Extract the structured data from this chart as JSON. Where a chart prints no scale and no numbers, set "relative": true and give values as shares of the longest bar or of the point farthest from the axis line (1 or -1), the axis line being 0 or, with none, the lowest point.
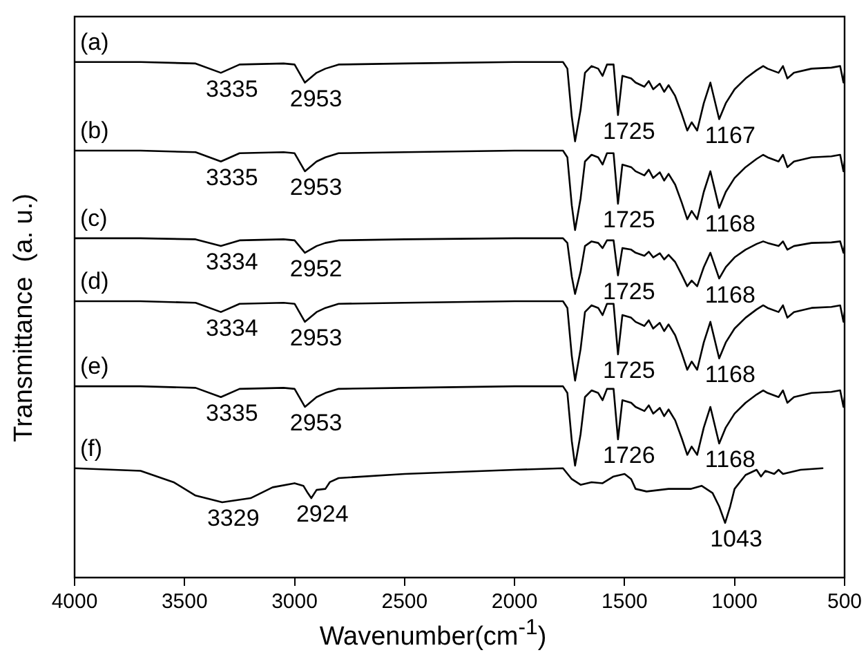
{
  "chart_data": {
    "type": "line",
    "relative": true,
    "xlabel": "Wavenumber(cm$^{-1}$)",
    "ylabel": "Transmittance  (a. u.)",
    "xlim": [
      4000,
      500
    ],
    "xticks": [
      4000,
      3500,
      3000,
      2500,
      2000,
      1500,
      1000,
      500
    ],
    "x": [
      4000,
      3700,
      3450,
      3335,
      3250,
      3050,
      3000,
      2953,
      2900,
      2860,
      2800,
      2500,
      2000,
      1780,
      1760,
      1740,
      1725,
      1700,
      1680,
      1650,
      1620,
      1600,
      1580,
      1550,
      1530,
      1510,
      1470,
      1450,
      1410,
      1390,
      1370,
      1340,
      1320,
      1300,
      1270,
      1240,
      1215,
      1195,
      1170,
      1140,
      1110,
      1070,
      1040,
      1000,
      950,
      900,
      870,
      850,
      800,
      780,
      760,
      730,
      650,
      560,
      520,
      505,
      500
    ],
    "series": [
      {
        "name": "(a)",
        "color": "#000000",
        "values": [
          1,
          1,
          0.997,
          0.979,
          0.995,
          0.997,
          0.995,
          0.96,
          0.979,
          0.987,
          0.995,
          0.997,
          1,
          1,
          0.987,
          0.894,
          0.846,
          0.907,
          0.979,
          0.992,
          0.987,
          0.973,
          0.995,
          0.995,
          0.897,
          0.973,
          0.968,
          0.96,
          0.952,
          0.963,
          0.947,
          0.958,
          0.942,
          0.955,
          0.934,
          0.899,
          0.867,
          0.883,
          0.867,
          0.92,
          0.96,
          0.889,
          0.92,
          0.947,
          0.968,
          0.984,
          0.992,
          0.987,
          0.979,
          0.992,
          0.968,
          0.979,
          0.987,
          0.989,
          0.992,
          0.96,
          0.979
        ]
      },
      {
        "name": "(b)",
        "color": "#000000",
        "values": [
          0.828,
          0.828,
          0.825,
          0.807,
          0.823,
          0.825,
          0.823,
          0.788,
          0.807,
          0.815,
          0.823,
          0.825,
          0.828,
          0.828,
          0.815,
          0.722,
          0.674,
          0.735,
          0.807,
          0.82,
          0.815,
          0.801,
          0.823,
          0.823,
          0.725,
          0.801,
          0.796,
          0.788,
          0.78,
          0.791,
          0.775,
          0.786,
          0.77,
          0.783,
          0.762,
          0.727,
          0.695,
          0.711,
          0.695,
          0.748,
          0.788,
          0.717,
          0.748,
          0.775,
          0.796,
          0.812,
          0.82,
          0.815,
          0.807,
          0.82,
          0.796,
          0.807,
          0.815,
          0.817,
          0.82,
          0.788,
          0.807
        ]
      },
      {
        "name": "(c)",
        "color": "#000000",
        "values": [
          0.658,
          0.658,
          0.656,
          0.643,
          0.654,
          0.656,
          0.654,
          0.63,
          0.643,
          0.649,
          0.654,
          0.656,
          0.658,
          0.658,
          0.649,
          0.584,
          0.55,
          0.593,
          0.643,
          0.652,
          0.649,
          0.639,
          0.654,
          0.654,
          0.586,
          0.639,
          0.636,
          0.63,
          0.624,
          0.632,
          0.621,
          0.629,
          0.617,
          0.626,
          0.612,
          0.587,
          0.565,
          0.576,
          0.565,
          0.602,
          0.63,
          0.58,
          0.602,
          0.621,
          0.636,
          0.647,
          0.652,
          0.649,
          0.643,
          0.652,
          0.636,
          0.643,
          0.649,
          0.65,
          0.652,
          0.63,
          0.643
        ]
      },
      {
        "name": "(d)",
        "color": "#000000",
        "values": [
          0.536,
          0.536,
          0.533,
          0.515,
          0.531,
          0.533,
          0.531,
          0.496,
          0.515,
          0.523,
          0.531,
          0.533,
          0.536,
          0.536,
          0.523,
          0.43,
          0.382,
          0.443,
          0.515,
          0.528,
          0.523,
          0.509,
          0.531,
          0.531,
          0.433,
          0.509,
          0.504,
          0.496,
          0.488,
          0.499,
          0.483,
          0.494,
          0.478,
          0.491,
          0.47,
          0.435,
          0.403,
          0.419,
          0.403,
          0.456,
          0.496,
          0.425,
          0.456,
          0.483,
          0.504,
          0.52,
          0.528,
          0.523,
          0.515,
          0.528,
          0.504,
          0.515,
          0.523,
          0.525,
          0.528,
          0.496,
          0.515
        ]
      },
      {
        "name": "(e)",
        "color": "#000000",
        "values": [
          0.371,
          0.371,
          0.368,
          0.35,
          0.366,
          0.368,
          0.366,
          0.331,
          0.35,
          0.358,
          0.366,
          0.368,
          0.371,
          0.371,
          0.358,
          0.265,
          0.217,
          0.278,
          0.35,
          0.363,
          0.358,
          0.344,
          0.366,
          0.366,
          0.268,
          0.344,
          0.339,
          0.331,
          0.323,
          0.334,
          0.318,
          0.329,
          0.313,
          0.326,
          0.305,
          0.27,
          0.238,
          0.254,
          0.238,
          0.291,
          0.331,
          0.26,
          0.291,
          0.318,
          0.339,
          0.355,
          0.363,
          0.358,
          0.35,
          0.363,
          0.339,
          0.35,
          0.358,
          0.36,
          0.363,
          0.331,
          0.35
        ]
      },
      {
        "name": "(f)",
        "color": "#000000",
        "x": [
          4000,
          3700,
          3550,
          3450,
          3329,
          3200,
          3100,
          3000,
          2960,
          2940,
          2924,
          2900,
          2860,
          2840,
          2800,
          2500,
          2000,
          1780,
          1740,
          1700,
          1650,
          1600,
          1550,
          1500,
          1470,
          1450,
          1400,
          1300,
          1200,
          1150,
          1100,
          1070,
          1043,
          1020,
          1000,
          950,
          900,
          880,
          860,
          820,
          800,
          780,
          700,
          600
        ],
        "values": [
          0.212,
          0.207,
          0.185,
          0.159,
          0.146,
          0.154,
          0.175,
          0.183,
          0.178,
          0.164,
          0.154,
          0.17,
          0.172,
          0.185,
          0.193,
          0.201,
          0.209,
          0.212,
          0.191,
          0.18,
          0.185,
          0.183,
          0.196,
          0.201,
          0.191,
          0.172,
          0.167,
          0.172,
          0.172,
          0.178,
          0.164,
          0.138,
          0.106,
          0.138,
          0.172,
          0.199,
          0.209,
          0.196,
          0.207,
          0.201,
          0.209,
          0.201,
          0.209,
          0.212
        ]
      }
    ],
    "annotations": [
      {
        "text": "3335",
        "x": 3335,
        "y": 0.979
      },
      {
        "text": "2953",
        "x": 2953,
        "y": 0.96
      },
      {
        "text": "1725",
        "x": 1530,
        "y": 0.897
      },
      {
        "text": "1167",
        "x": 1070,
        "y": 0.889
      },
      {
        "text": "3335",
        "x": 3335,
        "y": 0.807
      },
      {
        "text": "2953",
        "x": 2953,
        "y": 0.788
      },
      {
        "text": "1725",
        "x": 1530,
        "y": 0.725
      },
      {
        "text": "1168",
        "x": 1070,
        "y": 0.717
      },
      {
        "text": "3334",
        "x": 3335,
        "y": 0.643
      },
      {
        "text": "2952",
        "x": 2953,
        "y": 0.63
      },
      {
        "text": "1725",
        "x": 1530,
        "y": 0.586
      },
      {
        "text": "1168",
        "x": 1070,
        "y": 0.58
      },
      {
        "text": "3334",
        "x": 3335,
        "y": 0.515
      },
      {
        "text": "2953",
        "x": 2953,
        "y": 0.496
      },
      {
        "text": "1725",
        "x": 1530,
        "y": 0.433
      },
      {
        "text": "1168",
        "x": 1070,
        "y": 0.425
      },
      {
        "text": "3335",
        "x": 3335,
        "y": 0.35
      },
      {
        "text": "2953",
        "x": 2953,
        "y": 0.331
      },
      {
        "text": "1726",
        "x": 1530,
        "y": 0.268
      },
      {
        "text": "1168",
        "x": 1070,
        "y": 0.26
      },
      {
        "text": "3329",
        "x": 3329,
        "y": 0.146
      },
      {
        "text": "2924",
        "x": 2924,
        "y": 0.154
      },
      {
        "text": "1043",
        "x": 1043,
        "y": 0.106
      }
    ]
  }
}
